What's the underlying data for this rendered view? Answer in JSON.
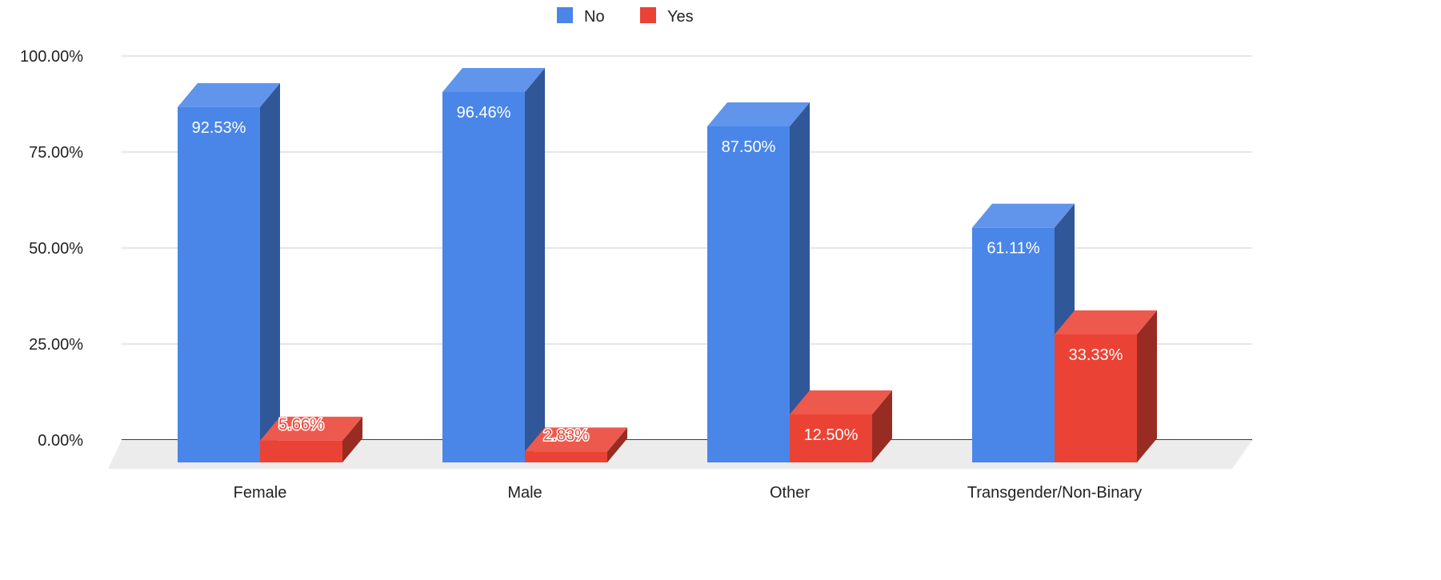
{
  "chart_data": {
    "type": "bar",
    "style": "3d",
    "categories": [
      "Female",
      "Male",
      "Other",
      "Transgender/Non-Binary"
    ],
    "series": [
      {
        "name": "No",
        "color": "#4a86e8",
        "values": [
          92.53,
          96.46,
          87.5,
          61.11
        ],
        "labels": [
          "92.53%",
          "96.46%",
          "87.50%",
          "61.11%"
        ]
      },
      {
        "name": "Yes",
        "color": "#ea4335",
        "values": [
          5.66,
          2.83,
          12.5,
          33.33
        ],
        "labels": [
          "5.66%",
          "2.83%",
          "12.50%",
          "33.33%"
        ]
      }
    ],
    "yticks": [
      "0.00%",
      "25.00%",
      "50.00%",
      "75.00%",
      "100.00%"
    ],
    "ylim": [
      0,
      100
    ],
    "grid": true,
    "legend_position": "top-center",
    "title": "",
    "xlabel": "",
    "ylabel": ""
  }
}
